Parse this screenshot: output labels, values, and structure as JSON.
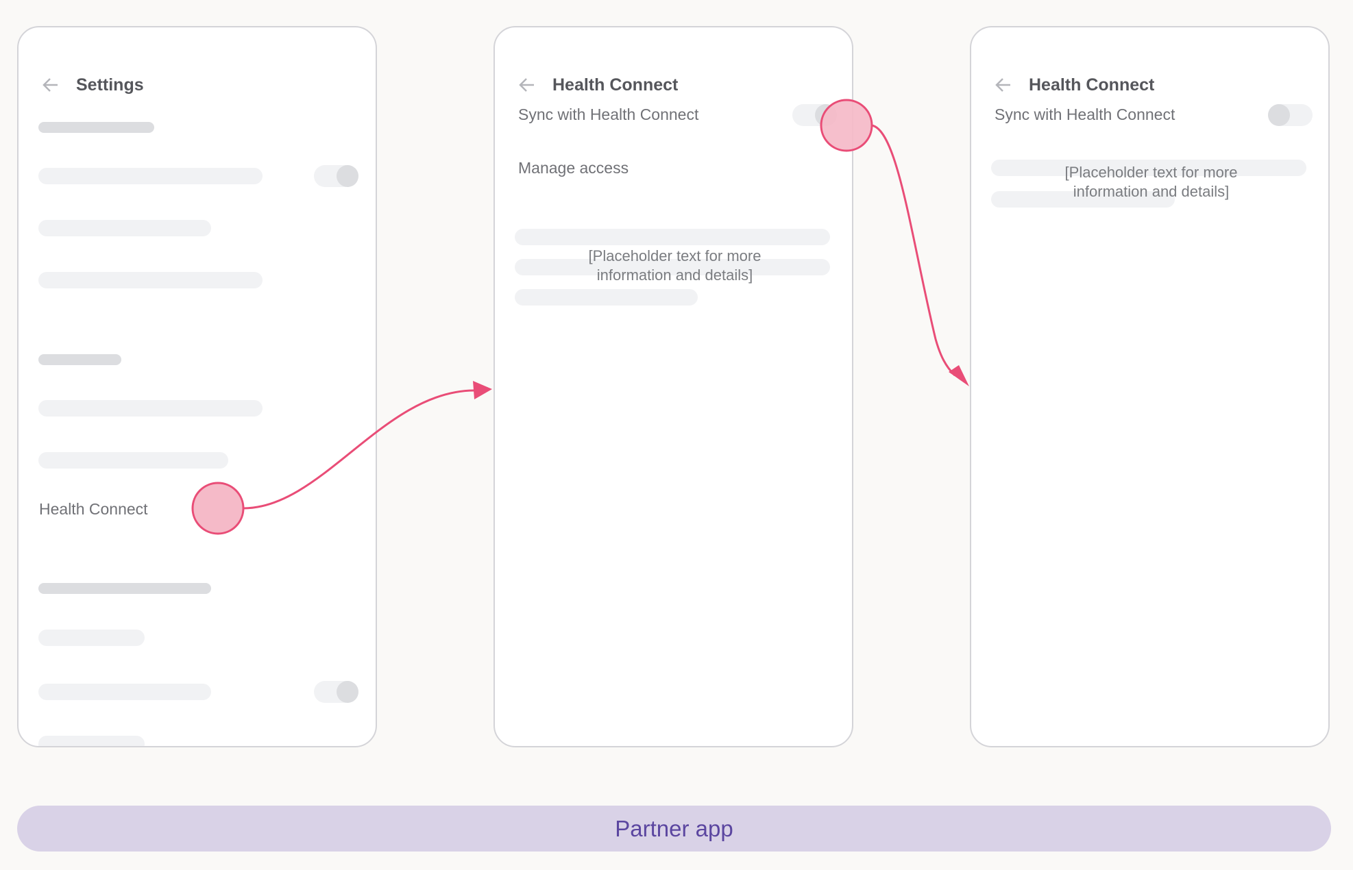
{
  "screens": [
    {
      "title": "Settings",
      "item_label": "Health Connect"
    },
    {
      "title": "Health Connect",
      "sync_label": "Sync with Health Connect",
      "manage_label": "Manage access",
      "placeholder_line1": "[Placeholder text for more",
      "placeholder_line2": "information and details]",
      "sync_toggle": "on"
    },
    {
      "title": "Health Connect",
      "sync_label": "Sync with Health Connect",
      "placeholder_line1": "[Placeholder text for more",
      "placeholder_line2": "information and details]",
      "sync_toggle": "off"
    }
  ],
  "footer": {
    "label": "Partner app"
  },
  "colors": {
    "accent": "#e94d77",
    "tap_fill": "#f5bac8",
    "footer_bg": "#d9d2e7",
    "footer_text": "#5b46a0"
  },
  "icons": {
    "back": "arrow-left-icon"
  }
}
